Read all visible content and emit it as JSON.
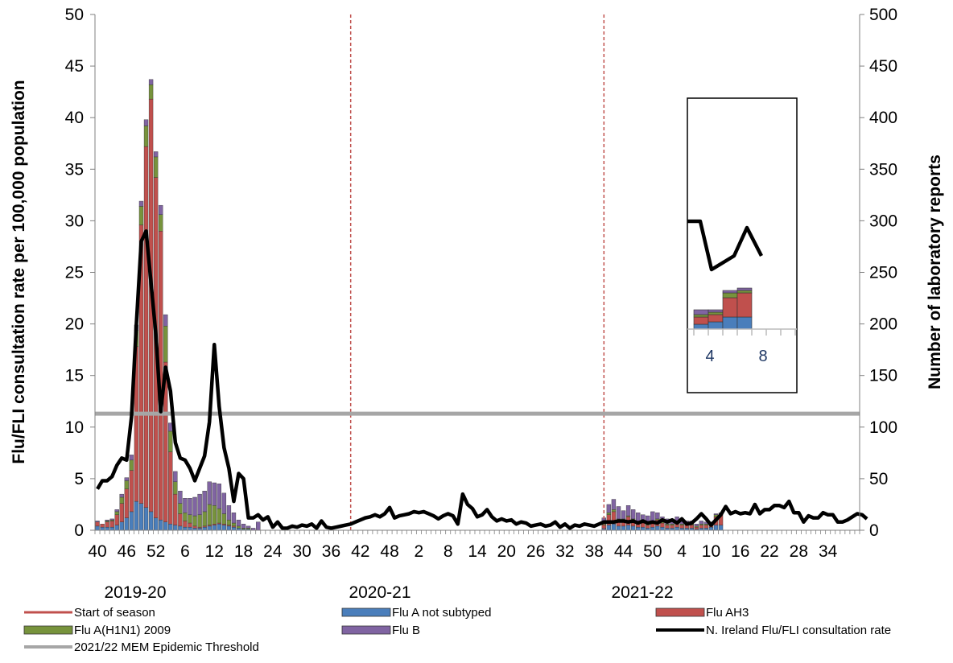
{
  "chart_data": {
    "type": "bar",
    "title": "",
    "ylabel": "Flu/FLI consultation rate per 100,000 population",
    "y2label": "Number of laboratory reports",
    "ylim": [
      0,
      50
    ],
    "y2lim": [
      0,
      500
    ],
    "yticks": [
      0,
      5,
      10,
      15,
      20,
      25,
      30,
      35,
      40,
      45,
      50
    ],
    "y2ticks": [
      0,
      50,
      100,
      150,
      200,
      250,
      300,
      350,
      400,
      450,
      500
    ],
    "xtick_labels": [
      "40",
      "46",
      "52",
      "6",
      "12",
      "18",
      "24",
      "30",
      "36",
      "42",
      "48",
      "2",
      "8",
      "14",
      "20",
      "26",
      "32",
      "38",
      "44",
      "50",
      "4",
      "10",
      "16",
      "22",
      "28",
      "34"
    ],
    "season_labels": [
      "2019-20",
      "2020-21",
      "2021-22"
    ],
    "season_start_week_index": [
      0,
      52,
      104
    ],
    "threshold": 11.3,
    "colors": {
      "flu_a_not_subtyped": "#4a7ebb",
      "flu_ah3": "#c0504d",
      "flu_ah1n1": "#77933c",
      "flu_b": "#8064a2",
      "consultation_rate": "#000000",
      "threshold": "#a6a6a6",
      "start_of_season": "#c0504d"
    },
    "legend": [
      {
        "key": "start",
        "label": "Start of season",
        "kind": "dashline"
      },
      {
        "key": "a_ns",
        "label": "Flu A not subtyped",
        "kind": "box"
      },
      {
        "key": "ah3",
        "label": "Flu AH3",
        "kind": "box"
      },
      {
        "key": "h1n1",
        "label": "Flu A(H1N1) 2009",
        "kind": "box"
      },
      {
        "key": "b",
        "label": "Flu B",
        "kind": "box"
      },
      {
        "key": "rate",
        "label": "N. Ireland Flu/FLI consultation rate",
        "kind": "line"
      },
      {
        "key": "thresh",
        "label": "2021/22 MEM Epidemic Threshold",
        "kind": "greyline"
      }
    ],
    "total_weeks": 157,
    "series": [
      {
        "name": "Flu A not subtyped",
        "unit": "laboratory reports",
        "values": [
          4,
          3,
          3,
          3,
          5,
          8,
          12,
          18,
          28,
          26,
          22,
          18,
          12,
          10,
          8,
          6,
          5,
          4,
          3,
          3,
          2,
          2,
          3,
          4,
          5,
          6,
          5,
          4,
          3,
          2,
          1,
          1,
          0,
          0,
          0,
          0,
          0,
          0,
          0,
          0,
          0,
          0,
          0,
          0,
          0,
          0,
          0,
          0,
          0,
          0,
          0,
          0,
          0,
          0,
          0,
          0,
          0,
          0,
          0,
          0,
          0,
          0,
          0,
          0,
          0,
          0,
          0,
          0,
          0,
          0,
          0,
          0,
          0,
          0,
          0,
          0,
          0,
          0,
          0,
          0,
          0,
          0,
          0,
          0,
          0,
          0,
          0,
          0,
          0,
          0,
          0,
          0,
          0,
          0,
          0,
          0,
          0,
          0,
          0,
          0,
          0,
          0,
          0,
          0,
          2,
          5,
          6,
          4,
          4,
          5,
          4,
          3,
          3,
          2,
          3,
          4,
          3,
          2,
          2,
          3,
          2,
          2,
          2,
          1,
          2,
          2,
          3,
          5,
          5,
          0,
          0,
          0,
          0,
          0,
          0,
          0,
          0,
          0,
          0,
          0,
          0,
          0,
          0,
          0,
          0,
          0,
          0,
          0,
          0,
          0,
          0,
          0,
          0,
          0,
          0,
          0,
          0
        ]
      },
      {
        "name": "Flu AH3",
        "values": [
          4,
          3,
          5,
          6,
          10,
          18,
          28,
          40,
          150,
          270,
          350,
          400,
          330,
          280,
          155,
          70,
          30,
          12,
          6,
          4,
          2,
          1,
          1,
          1,
          1,
          1,
          1,
          1,
          1,
          0,
          0,
          0,
          0,
          0,
          0,
          0,
          0,
          0,
          0,
          0,
          0,
          0,
          0,
          0,
          0,
          0,
          0,
          0,
          0,
          0,
          0,
          0,
          0,
          0,
          0,
          0,
          0,
          0,
          0,
          0,
          0,
          0,
          0,
          0,
          0,
          0,
          0,
          0,
          0,
          0,
          0,
          0,
          0,
          0,
          0,
          0,
          0,
          0,
          0,
          0,
          0,
          0,
          0,
          0,
          0,
          0,
          0,
          0,
          0,
          0,
          0,
          0,
          0,
          0,
          0,
          0,
          0,
          0,
          0,
          0,
          0,
          0,
          0,
          0,
          3,
          10,
          12,
          6,
          6,
          8,
          6,
          5,
          4,
          3,
          4,
          6,
          4,
          3,
          3,
          4,
          3,
          3,
          3,
          2,
          3,
          3,
          3,
          8,
          10,
          0,
          0,
          0,
          0,
          0,
          0,
          0,
          0,
          0,
          0,
          0,
          0,
          0,
          0,
          0,
          0,
          0,
          0,
          0,
          0,
          0,
          0,
          0,
          0,
          0,
          0,
          0,
          0
        ]
      },
      {
        "name": "Flu A(H1N1) 2009",
        "values": [
          0,
          0,
          1,
          1,
          3,
          6,
          8,
          10,
          16,
          18,
          20,
          14,
          20,
          16,
          35,
          20,
          12,
          10,
          8,
          8,
          10,
          12,
          14,
          20,
          18,
          14,
          10,
          5,
          3,
          2,
          1,
          1,
          0,
          0,
          0,
          0,
          0,
          0,
          0,
          0,
          0,
          0,
          0,
          0,
          0,
          0,
          0,
          0,
          0,
          0,
          0,
          0,
          0,
          0,
          0,
          0,
          0,
          0,
          0,
          0,
          0,
          0,
          0,
          0,
          0,
          0,
          0,
          0,
          0,
          0,
          0,
          0,
          0,
          0,
          0,
          0,
          0,
          0,
          0,
          0,
          0,
          0,
          0,
          0,
          0,
          0,
          0,
          0,
          0,
          0,
          0,
          0,
          0,
          0,
          0,
          0,
          0,
          0,
          0,
          0,
          0,
          0,
          0,
          0,
          1,
          2,
          2,
          1,
          1,
          1,
          1,
          1,
          1,
          1,
          1,
          1,
          1,
          1,
          1,
          1,
          1,
          1,
          1,
          1,
          1,
          1,
          1,
          2,
          1,
          0,
          0,
          0,
          0,
          0,
          0,
          0,
          0,
          0,
          0,
          0,
          0,
          0,
          0,
          0,
          0,
          0,
          0,
          0,
          0,
          0,
          0,
          0,
          0,
          0,
          0,
          0,
          0
        ]
      },
      {
        "name": "Flu B",
        "values": [
          1,
          0,
          1,
          1,
          2,
          3,
          3,
          5,
          5,
          5,
          6,
          5,
          5,
          9,
          11,
          8,
          10,
          12,
          14,
          16,
          18,
          20,
          20,
          22,
          22,
          24,
          20,
          14,
          10,
          6,
          4,
          2,
          2,
          8,
          0,
          0,
          0,
          0,
          0,
          0,
          0,
          0,
          0,
          0,
          0,
          0,
          0,
          0,
          0,
          0,
          0,
          0,
          0,
          0,
          0,
          0,
          0,
          0,
          0,
          0,
          0,
          0,
          0,
          0,
          0,
          0,
          0,
          0,
          0,
          0,
          0,
          0,
          0,
          0,
          0,
          0,
          0,
          0,
          0,
          0,
          0,
          0,
          0,
          0,
          0,
          0,
          0,
          0,
          0,
          0,
          0,
          0,
          0,
          0,
          0,
          0,
          0,
          0,
          0,
          0,
          0,
          0,
          0,
          0,
          6,
          8,
          10,
          12,
          8,
          10,
          9,
          8,
          7,
          8,
          10,
          6,
          5,
          5,
          4,
          5,
          4,
          3,
          3,
          2,
          3,
          2,
          1,
          1,
          1,
          0,
          0,
          0,
          0,
          0,
          0,
          0,
          0,
          0,
          0,
          0,
          0,
          0,
          0,
          0,
          0,
          0,
          0,
          0,
          0,
          0,
          0,
          0,
          0,
          0,
          0,
          0,
          0
        ]
      },
      {
        "name": "N. Ireland Flu/FLI consultation rate",
        "values": [
          4.0,
          4.8,
          4.8,
          5.2,
          6.3,
          7.0,
          6.8,
          11.0,
          20.0,
          28.0,
          29.0,
          24.0,
          19.0,
          11.5,
          15.8,
          13.5,
          8.5,
          7.0,
          6.8,
          6.0,
          4.8,
          6.0,
          7.2,
          10.5,
          18.0,
          12.0,
          8.0,
          6.0,
          2.8,
          5.5,
          5.0,
          1.2,
          1.2,
          1.5,
          1.0,
          1.3,
          0.3,
          0.8,
          0.2,
          0.2,
          0.4,
          0.3,
          0.5,
          0.4,
          0.6,
          0.2,
          0.9,
          0.3,
          0.2,
          0.3,
          0.4,
          0.5,
          0.6,
          0.8,
          1.0,
          1.2,
          1.3,
          1.5,
          1.3,
          1.6,
          2.2,
          1.2,
          1.4,
          1.5,
          1.6,
          1.8,
          1.7,
          1.8,
          1.6,
          1.4,
          1.1,
          1.4,
          1.6,
          1.4,
          0.6,
          3.5,
          2.5,
          2.1,
          1.3,
          1.5,
          2.0,
          1.3,
          0.9,
          1.1,
          0.9,
          1.0,
          0.6,
          0.8,
          0.7,
          0.4,
          0.5,
          0.6,
          0.4,
          0.5,
          0.8,
          0.3,
          0.6,
          0.2,
          0.5,
          0.4,
          0.6,
          0.5,
          0.4,
          0.6,
          0.8,
          0.8,
          0.8,
          0.9,
          0.9,
          0.8,
          0.9,
          0.7,
          0.9,
          0.7,
          0.8,
          0.7,
          1.0,
          0.8,
          1.0,
          0.7,
          1.1,
          0.6,
          0.7,
          1.1,
          1.6,
          1.1,
          0.5,
          1.0,
          1.5,
          2.3,
          1.6,
          1.8,
          1.6,
          1.7,
          1.6,
          2.5,
          1.6,
          2.0,
          2.0,
          2.4,
          2.4,
          2.2,
          2.8,
          1.7,
          1.7,
          0.8,
          1.4,
          1.2,
          1.2,
          1.7,
          1.5,
          1.5,
          0.8,
          0.8,
          1.0,
          1.3,
          1.6,
          1.5,
          1.1
        ]
      }
    ],
    "inset": {
      "xtick_labels": [
        "4",
        "8"
      ],
      "note": "zoomed view of latest weeks"
    }
  }
}
